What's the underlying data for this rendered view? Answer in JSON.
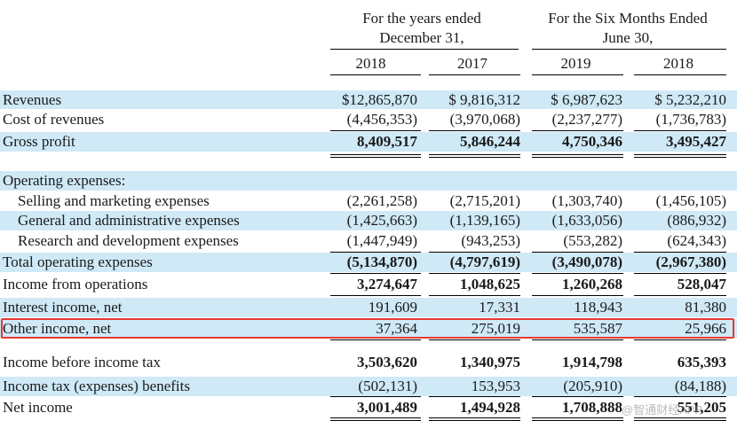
{
  "header": {
    "group1": [
      "For the years ended",
      "December 31,"
    ],
    "group2": [
      "For the Six Months Ended",
      "June 30,"
    ],
    "years": [
      "2018",
      "2017",
      "2019",
      "2018"
    ]
  },
  "rows": [
    {
      "label": "Revenues",
      "values": [
        "$12,865,870",
        "$ 9,816,312",
        "$ 6,987,623",
        "$ 5,232,210"
      ]
    },
    {
      "label": "Cost of revenues",
      "values": [
        "(4,456,353)",
        "(3,970,068)",
        "(2,237,277)",
        "(1,736,783)"
      ]
    },
    {
      "label": "Gross profit",
      "values": [
        "8,409,517",
        "5,846,244",
        "4,750,346",
        "3,495,427"
      ]
    },
    {
      "label": "Operating expenses:",
      "values": [
        "",
        "",
        "",
        ""
      ]
    },
    {
      "label": "Selling and marketing expenses",
      "values": [
        "(2,261,258)",
        "(2,715,201)",
        "(1,303,740)",
        "(1,456,105)"
      ]
    },
    {
      "label": "General and administrative expenses",
      "values": [
        "(1,425,663)",
        "(1,139,165)",
        "(1,633,056)",
        "(886,932)"
      ]
    },
    {
      "label": "Research and development expenses",
      "values": [
        "(1,447,949)",
        "(943,253)",
        "(553,282)",
        "(624,343)"
      ]
    },
    {
      "label": "Total operating expenses",
      "values": [
        "(5,134,870)",
        "(4,797,619)",
        "(3,490,078)",
        "(2,967,380)"
      ]
    },
    {
      "label": "Income from operations",
      "values": [
        "3,274,647",
        "1,048,625",
        "1,260,268",
        "528,047"
      ]
    },
    {
      "label": "Interest income, net",
      "values": [
        "191,609",
        "17,331",
        "118,943",
        "81,380"
      ]
    },
    {
      "label": "Other income, net",
      "values": [
        "37,364",
        "275,019",
        "535,587",
        "25,966"
      ]
    },
    {
      "label": "Income before income tax",
      "values": [
        "3,503,620",
        "1,340,975",
        "1,914,798",
        "635,393"
      ]
    },
    {
      "label": "Income tax (expenses) benefits",
      "values": [
        "(502,131)",
        "153,953",
        "(205,910)",
        "(84,188)"
      ]
    },
    {
      "label": "Net income",
      "values": [
        "3,001,489",
        "1,494,928",
        "1,708,888",
        "551,205"
      ]
    }
  ],
  "highlight_color": "#e53935",
  "shade_color": "#cfe9f7",
  "watermark": "@智通财经APP"
}
